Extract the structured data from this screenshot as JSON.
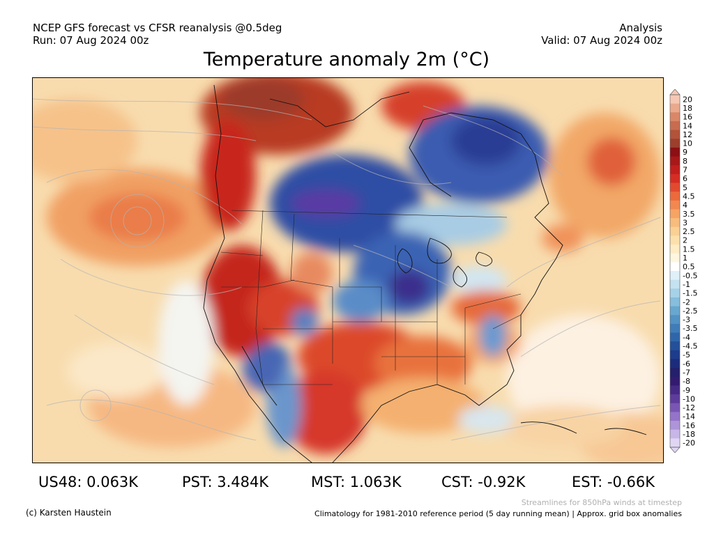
{
  "header": {
    "line1": "NCEP GFS forecast vs CFSR reanalysis @0.5deg",
    "line2": "Run: 07 Aug 2024 00z",
    "right1": "Analysis",
    "right2": "Valid: 07 Aug 2024 00z"
  },
  "title": "Temperature anomaly 2m (°C)",
  "colorbar": {
    "labels": [
      "20",
      "18",
      "16",
      "14",
      "12",
      "10",
      "9",
      "8",
      "7",
      "6",
      "5",
      "4.5",
      "4",
      "3.5",
      "3",
      "2.5",
      "2",
      "1.5",
      "1",
      "0.5",
      "-0.5",
      "-1",
      "-1.5",
      "-2",
      "-2.5",
      "-3",
      "-3.5",
      "-4",
      "-4.5",
      "-5",
      "-6",
      "-7",
      "-8",
      "-9",
      "-10",
      "-12",
      "-14",
      "-16",
      "-18",
      "-20"
    ],
    "colors": [
      "#f6c8b4",
      "#eaa98c",
      "#d98768",
      "#c86c50",
      "#b2533a",
      "#9c3f2c",
      "#8c0f14",
      "#a81818",
      "#c21e1e",
      "#d52d24",
      "#e24a2e",
      "#ec6a3c",
      "#f28850",
      "#f6a464",
      "#f8bc7c",
      "#fad094",
      "#fce0ac",
      "#fdecc4",
      "#fef6de",
      "#ffffff",
      "#dff0f8",
      "#c4e2f0",
      "#a6d2e8",
      "#86bedc",
      "#68a8d0",
      "#5292c4",
      "#3f7cb8",
      "#2f66aa",
      "#24509a",
      "#1d3c8c",
      "#1c2c7c",
      "#24206c",
      "#331c70",
      "#472a86",
      "#5e3c9c",
      "#7a56b4",
      "#9474c8",
      "#ae94d8",
      "#c8b6e8",
      "#e0d6f4"
    ]
  },
  "stats": [
    {
      "label": "US48: 0.063K"
    },
    {
      "label": "PST: 3.484K"
    },
    {
      "label": "MST: 1.063K"
    },
    {
      "label": "CST: -0.92K"
    },
    {
      "label": "EST: -0.66K"
    }
  ],
  "footer": {
    "streamlines": "Streamlines for 850hPa winds at timestep",
    "copyright": "(c) Karsten Haustein",
    "climatology": "Climatology for 1981-2010 reference period (5 day running mean) | Approx. grid box anomalies"
  }
}
